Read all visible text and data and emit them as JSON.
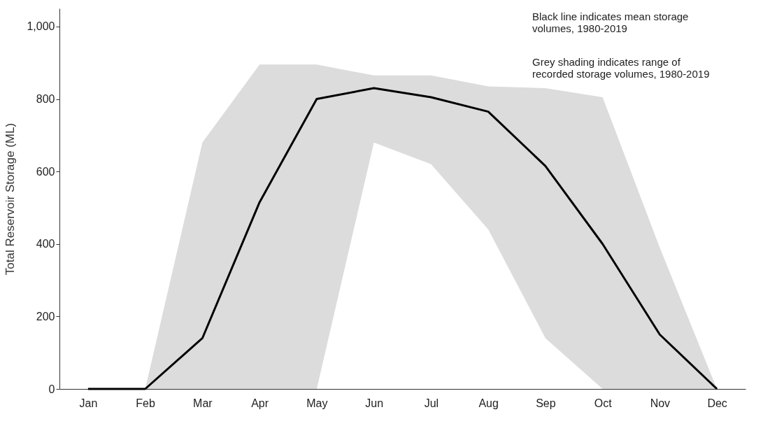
{
  "chart_data": {
    "type": "line",
    "ylabel": "Total Reservoir Storage (ML)",
    "categories": [
      "Jan",
      "Feb",
      "Mar",
      "Apr",
      "May",
      "Jun",
      "Jul",
      "Aug",
      "Sep",
      "Oct",
      "Nov",
      "Dec"
    ],
    "series": [
      {
        "color": "#000000",
        "values": [
          0,
          0,
          140,
          515,
          800,
          830,
          805,
          765,
          615,
          400,
          150,
          0
        ],
        "lower": [
          0,
          0,
          0,
          0,
          0,
          680,
          620,
          440,
          140,
          0,
          0,
          0
        ],
        "upper": [
          0,
          0,
          680,
          895,
          895,
          865,
          865,
          835,
          830,
          805,
          390,
          0
        ]
      }
    ],
    "ylim": [
      0,
      1050
    ],
    "yticks": [
      0,
      200,
      400,
      600,
      800,
      {
        "value": 1000,
        "label": "1,000"
      }
    ],
    "grid": false,
    "marker": "none",
    "line_style": "solid",
    "annotations": [
      "Black line indicates mean storage\nvolumes, 1980-2019",
      "Grey shading indicates range of\nrecorded storage volumes, 1980-2019"
    ]
  }
}
